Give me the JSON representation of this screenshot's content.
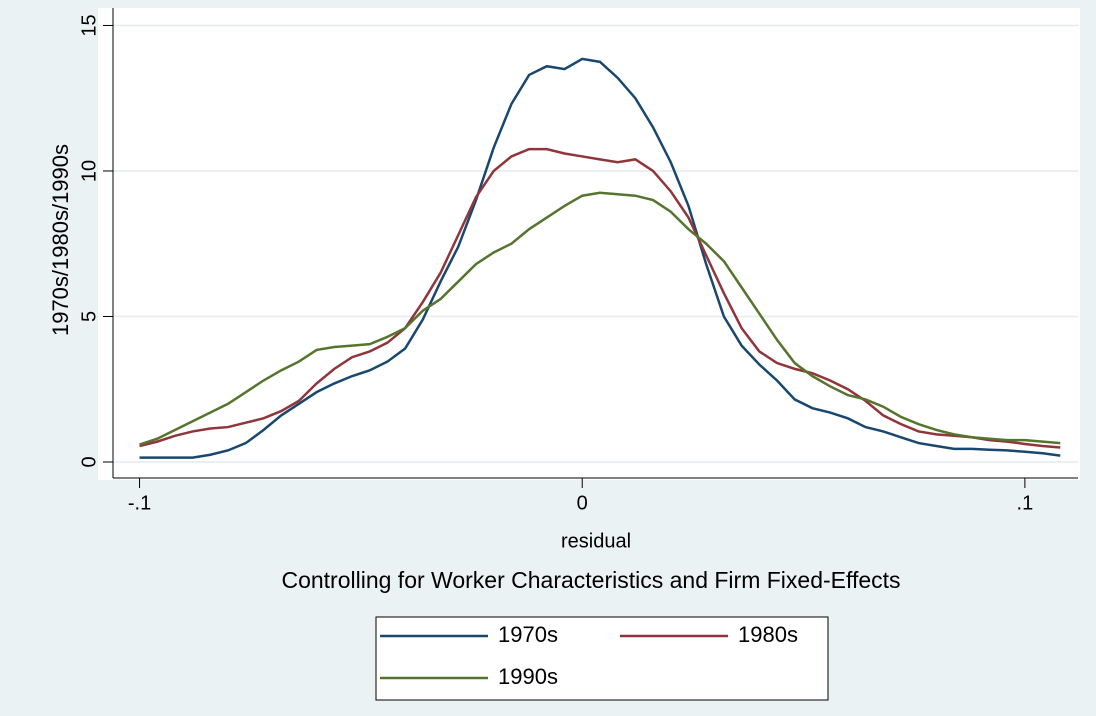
{
  "chart_data": {
    "type": "line",
    "x_label": "residual",
    "y_label": "1970s/1980s/1990s",
    "subtitle": "Controlling for Worker Characteristics and Firm Fixed-Effects",
    "x": [
      -0.1,
      -0.096,
      -0.092,
      -0.088,
      -0.084,
      -0.08,
      -0.076,
      -0.072,
      -0.068,
      -0.064,
      -0.06,
      -0.056,
      -0.052,
      -0.048,
      -0.044,
      -0.04,
      -0.036,
      -0.032,
      -0.028,
      -0.024,
      -0.02,
      -0.016,
      -0.012,
      -0.008,
      -0.004,
      0,
      0.004,
      0.008,
      0.012,
      0.016,
      0.02,
      0.024,
      0.028,
      0.032,
      0.036,
      0.04,
      0.044,
      0.048,
      0.052,
      0.056,
      0.06,
      0.064,
      0.068,
      0.072,
      0.076,
      0.08,
      0.084,
      0.088,
      0.092,
      0.096,
      0.1,
      0.104,
      0.108
    ],
    "series": [
      {
        "name": "1970s",
        "color": "#1a476f",
        "values": [
          0.15,
          0.15,
          0.15,
          0.15,
          0.25,
          0.4,
          0.65,
          1.1,
          1.6,
          2.0,
          2.4,
          2.7,
          2.95,
          3.15,
          3.45,
          3.9,
          4.9,
          6.2,
          7.4,
          9.0,
          10.8,
          12.3,
          13.3,
          13.6,
          13.5,
          13.85,
          13.75,
          13.2,
          12.5,
          11.5,
          10.3,
          8.8,
          6.8,
          5.0,
          4.0,
          3.35,
          2.8,
          2.15,
          1.85,
          1.7,
          1.5,
          1.2,
          1.05,
          0.85,
          0.65,
          0.55,
          0.45,
          0.45,
          0.42,
          0.4,
          0.35,
          0.3,
          0.22
        ]
      },
      {
        "name": "1980s",
        "color": "#90353b",
        "values": [
          0.55,
          0.7,
          0.9,
          1.05,
          1.15,
          1.2,
          1.35,
          1.5,
          1.75,
          2.1,
          2.7,
          3.2,
          3.6,
          3.8,
          4.1,
          4.6,
          5.5,
          6.5,
          7.8,
          9.1,
          10.0,
          10.5,
          10.75,
          10.75,
          10.6,
          10.5,
          10.4,
          10.3,
          10.4,
          10.0,
          9.3,
          8.4,
          7.1,
          5.8,
          4.6,
          3.8,
          3.4,
          3.2,
          3.05,
          2.8,
          2.5,
          2.1,
          1.6,
          1.3,
          1.05,
          0.95,
          0.9,
          0.85,
          0.75,
          0.7,
          0.62,
          0.55,
          0.5
        ]
      },
      {
        "name": "1990s",
        "color": "#55752f",
        "values": [
          0.6,
          0.8,
          1.1,
          1.4,
          1.7,
          2.0,
          2.4,
          2.8,
          3.15,
          3.45,
          3.85,
          3.95,
          4.0,
          4.05,
          4.3,
          4.6,
          5.2,
          5.6,
          6.2,
          6.8,
          7.2,
          7.5,
          8.0,
          8.4,
          8.8,
          9.15,
          9.25,
          9.2,
          9.15,
          9.0,
          8.6,
          8.0,
          7.5,
          6.9,
          6.0,
          5.1,
          4.2,
          3.4,
          2.95,
          2.6,
          2.3,
          2.15,
          1.9,
          1.55,
          1.3,
          1.1,
          0.95,
          0.85,
          0.8,
          0.75,
          0.75,
          0.7,
          0.65
        ]
      }
    ],
    "xlim": [
      -0.106,
      0.112
    ],
    "ylim": [
      -0.55,
      15.6
    ],
    "xticks": [
      {
        "value": -0.1,
        "label": "-.1"
      },
      0,
      {
        "value": 0.1,
        "label": ".1"
      }
    ],
    "yticks": [
      0,
      5,
      10,
      15
    ],
    "grid": true,
    "legend": "bottom"
  }
}
